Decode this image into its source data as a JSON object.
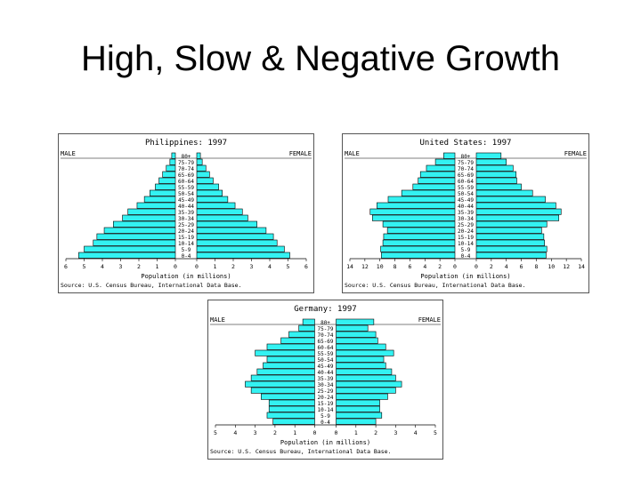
{
  "slide": {
    "title": "High, Slow & Negative Growth"
  },
  "labels": {
    "male": "MALE",
    "female": "FEMALE",
    "x_title": "Population (in millions)",
    "source_ph": "Source: U.S. Census Bureau, International Data Base.",
    "source": "Source: U.S. Census Bureau, International Data Base."
  },
  "chart_data": [
    {
      "type": "bar",
      "title": "Philippines: 1997",
      "xlabel": "Population (in millions)",
      "age_groups": [
        "0-4",
        "5-9",
        "10-14",
        "15-19",
        "20-24",
        "25-29",
        "30-34",
        "35-39",
        "40-44",
        "45-49",
        "50-54",
        "55-59",
        "60-64",
        "65-69",
        "70-74",
        "75-79",
        "80+"
      ],
      "male": [
        5.3,
        5.0,
        4.5,
        4.3,
        3.9,
        3.4,
        2.9,
        2.6,
        2.1,
        1.7,
        1.4,
        1.1,
        0.9,
        0.7,
        0.5,
        0.3,
        0.2
      ],
      "female": [
        5.1,
        4.8,
        4.4,
        4.2,
        3.8,
        3.3,
        2.8,
        2.5,
        2.1,
        1.7,
        1.4,
        1.2,
        0.9,
        0.7,
        0.5,
        0.3,
        0.2
      ],
      "xmax": 6,
      "ticks": [
        "6",
        "5",
        "4",
        "3",
        "2",
        "1",
        "0",
        "0",
        "1",
        "2",
        "3",
        "4",
        "5",
        "6"
      ]
    },
    {
      "type": "bar",
      "title": "United States: 1997",
      "xlabel": "Population (in millions)",
      "age_groups": [
        "0-4",
        "5-9",
        "10-14",
        "15-19",
        "20-24",
        "25-29",
        "30-34",
        "35-39",
        "40-44",
        "45-49",
        "50-54",
        "55-59",
        "60-64",
        "65-69",
        "70-74",
        "75-79",
        "80+"
      ],
      "male": [
        9.8,
        9.9,
        9.6,
        9.5,
        9.0,
        9.6,
        11.0,
        11.3,
        10.4,
        8.9,
        7.1,
        5.6,
        4.9,
        4.6,
        3.8,
        2.6,
        1.5
      ],
      "female": [
        9.3,
        9.4,
        9.1,
        9.0,
        8.7,
        9.4,
        11.0,
        11.3,
        10.6,
        9.2,
        7.5,
        6.0,
        5.4,
        5.3,
        4.9,
        4.0,
        3.3
      ],
      "xmax": 14,
      "ticks": [
        "14",
        "12",
        "10",
        "8",
        "6",
        "4",
        "2",
        "0",
        "0",
        "2",
        "4",
        "6",
        "8",
        "10",
        "12",
        "14"
      ]
    },
    {
      "type": "bar",
      "title": "Germany: 1997",
      "xlabel": "Population (in millions)",
      "age_groups": [
        "0-4",
        "5-9",
        "10-14",
        "15-19",
        "20-24",
        "25-29",
        "30-34",
        "35-39",
        "40-44",
        "45-49",
        "50-54",
        "55-59",
        "60-64",
        "65-69",
        "70-74",
        "75-79",
        "80+"
      ],
      "male": [
        2.1,
        2.4,
        2.3,
        2.3,
        2.7,
        3.2,
        3.5,
        3.2,
        2.9,
        2.6,
        2.4,
        3.0,
        2.4,
        1.7,
        1.3,
        0.8,
        0.6
      ],
      "female": [
        2.0,
        2.3,
        2.2,
        2.2,
        2.6,
        3.0,
        3.3,
        3.0,
        2.8,
        2.5,
        2.4,
        2.9,
        2.5,
        2.1,
        2.0,
        1.6,
        1.9
      ],
      "xmax": 5,
      "ticks": [
        "5",
        "4",
        "3",
        "2",
        "1",
        "0",
        "0",
        "1",
        "2",
        "3",
        "4",
        "5"
      ]
    }
  ]
}
